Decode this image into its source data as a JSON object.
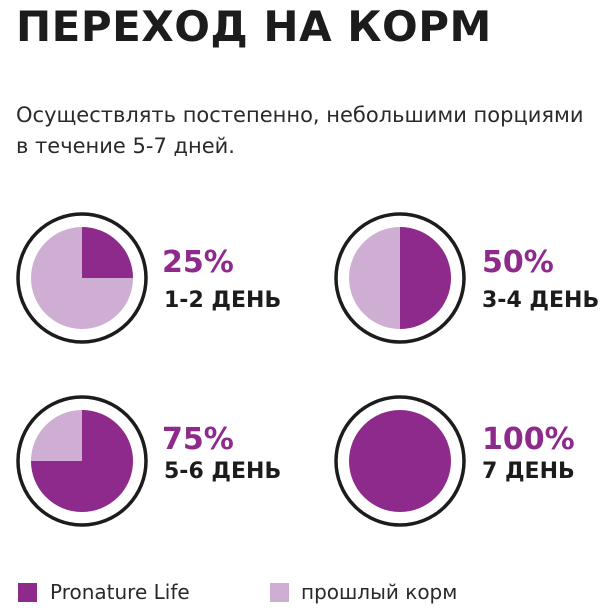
{
  "title": "ПЕРЕХОД НА КОРМ",
  "subtitle": "Осуществлять постепенно, небольшими порциями в течение 5-7 дней.",
  "colors": {
    "new_food": "#8e2a8b",
    "old_food": "#cfaed3",
    "ring": "#1c1c1c"
  },
  "legend": {
    "new_label": "Pronature Life",
    "old_label": "прошлый корм"
  },
  "chart_data": {
    "type": "pie",
    "title": "ПЕРЕХОД НА КОРМ",
    "series_names": [
      "Pronature Life",
      "прошлый корм"
    ],
    "charts": [
      {
        "percent_label": "25%",
        "day_label": "1-2 ДЕНЬ",
        "new": 25,
        "old": 75
      },
      {
        "percent_label": "50%",
        "day_label": "3-4 ДЕНЬ",
        "new": 50,
        "old": 50
      },
      {
        "percent_label": "75%",
        "day_label": "5-6 ДЕНЬ",
        "new": 75,
        "old": 25
      },
      {
        "percent_label": "100%",
        "day_label": "7 ДЕНЬ",
        "new": 100,
        "old": 0
      }
    ]
  }
}
